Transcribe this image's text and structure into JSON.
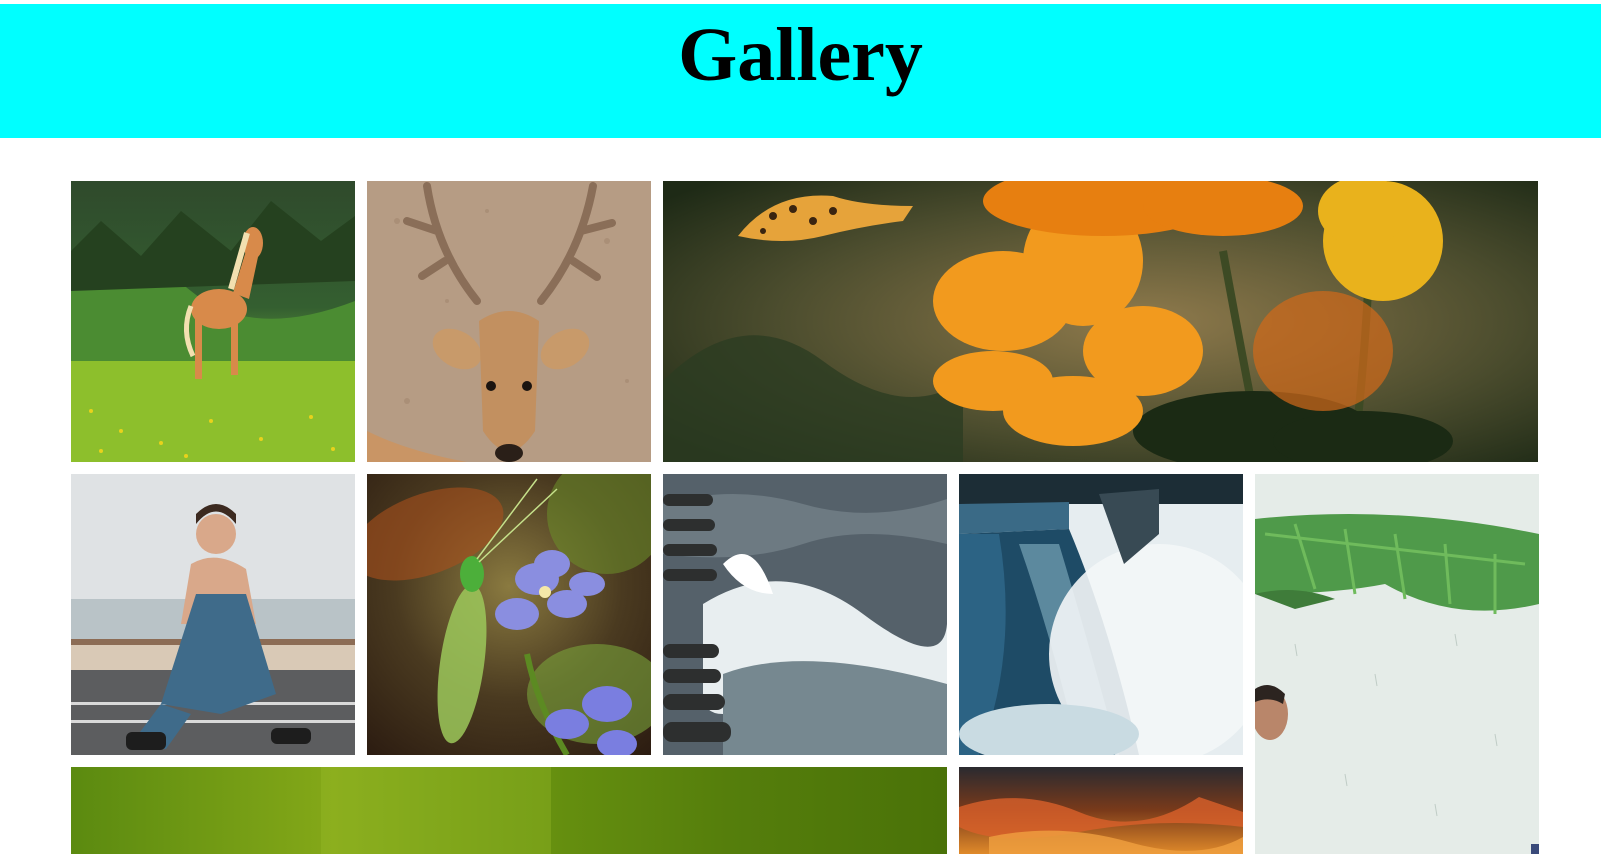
{
  "page": {
    "title": "Gallery",
    "header_color": "#00ffff",
    "background_color": "#ffffff"
  },
  "gallery": {
    "images": [
      {
        "id": "horse",
        "subject": "horse-in-meadow"
      },
      {
        "id": "deer",
        "subject": "deer-with-antlers"
      },
      {
        "id": "flowers",
        "subject": "orange-flowers-with-butterfly"
      },
      {
        "id": "girl",
        "subject": "girl-sitting-on-road"
      },
      {
        "id": "lacewing",
        "subject": "green-lacewing-on-blue-flowers"
      },
      {
        "id": "waves",
        "subject": "waves-at-wooden-posts"
      },
      {
        "id": "waterfall",
        "subject": "waterfall"
      },
      {
        "id": "child-leaf",
        "subject": "child-under-banana-leaf-in-rain"
      },
      {
        "id": "green-blur",
        "subject": "green-blurred-background"
      },
      {
        "id": "sunset",
        "subject": "orange-sunset-clouds"
      }
    ]
  }
}
